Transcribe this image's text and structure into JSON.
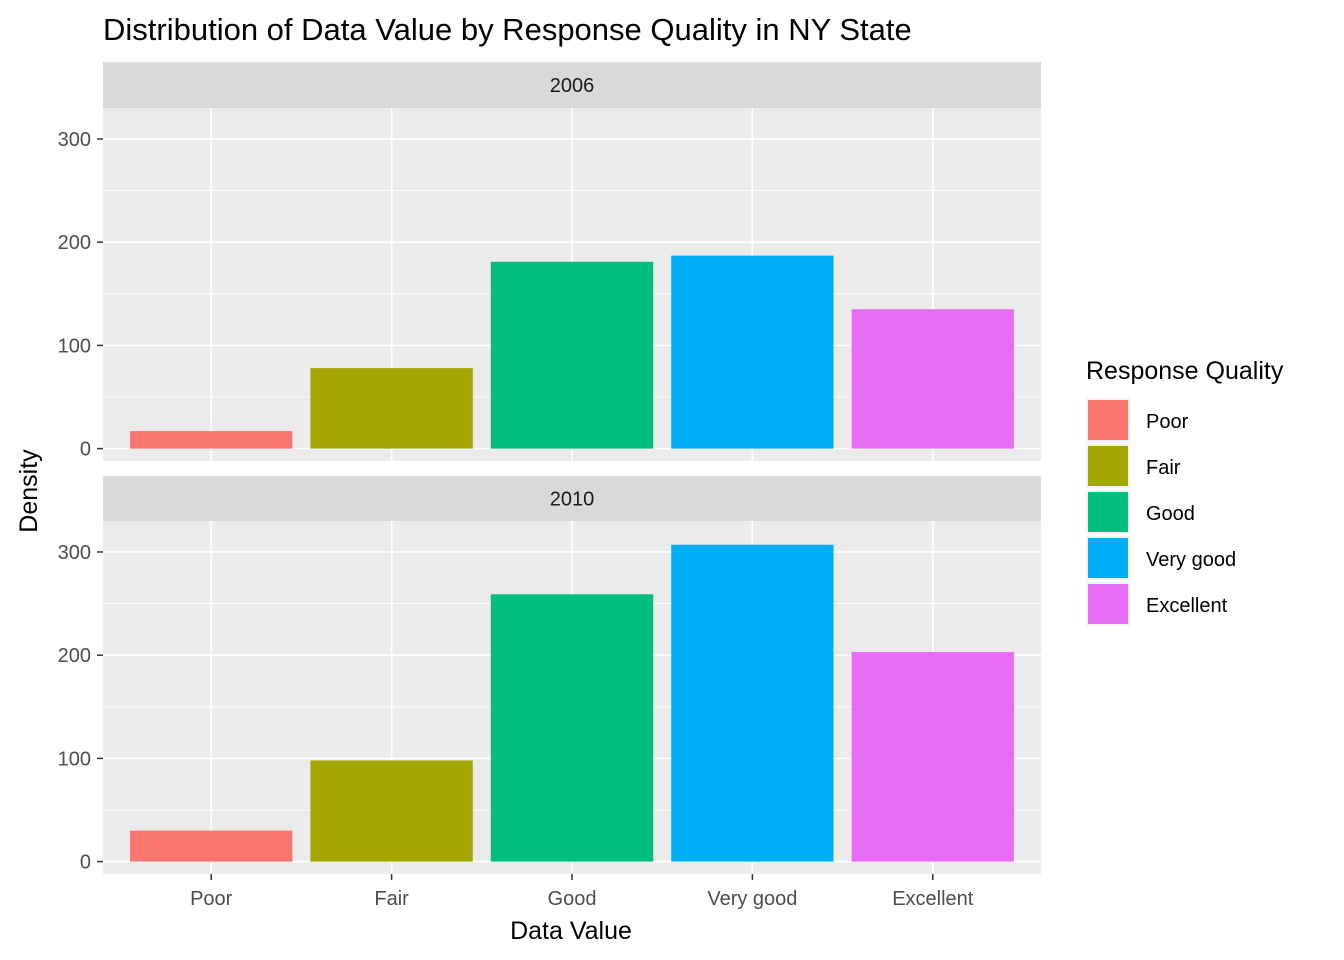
{
  "chart_data": {
    "type": "bar",
    "title": "Distribution of Data Value by Response Quality in NY State",
    "xlabel": "Data Value",
    "ylabel": "Density",
    "categories": [
      "Poor",
      "Fair",
      "Good",
      "Very good",
      "Excellent"
    ],
    "colors": [
      "#F8766D",
      "#A3A500",
      "#00BF7D",
      "#00B0F6",
      "#E76BF3"
    ],
    "ylim": [
      -12,
      330
    ],
    "yticks": [
      0,
      100,
      200,
      300
    ],
    "grid": true,
    "facets": [
      {
        "label": "2006",
        "values": [
          17,
          78,
          181,
          187,
          135
        ]
      },
      {
        "label": "2010",
        "values": [
          30,
          98,
          259,
          307,
          203
        ]
      }
    ],
    "legend": {
      "title": "Response Quality",
      "position": "right",
      "items": [
        "Poor",
        "Fair",
        "Good",
        "Very good",
        "Excellent"
      ]
    }
  }
}
